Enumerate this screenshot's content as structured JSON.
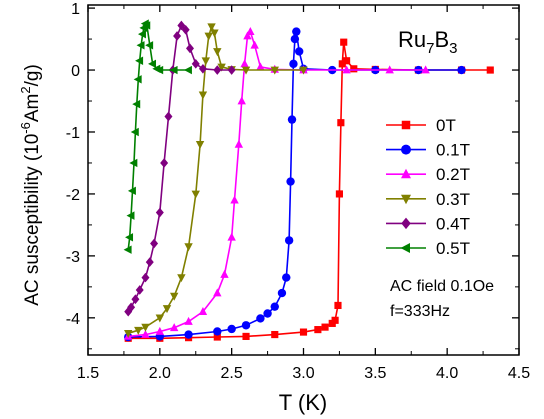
{
  "chart_data": {
    "type": "line",
    "title": "",
    "xlabel": "T (K)",
    "ylabel": "AC susceptibility (10",
    "ylabel_sup": "-6",
    "ylabel_unit": "Am",
    "ylabel_unit_sup": "2",
    "ylabel_tail": "/g)",
    "xlim": [
      1.5,
      4.5
    ],
    "ylim": [
      -4.6,
      1.05
    ],
    "xticks": [
      1.5,
      2.0,
      2.5,
      3.0,
      3.5,
      4.0,
      4.5
    ],
    "xtick_labels": [
      "1.5",
      "2.0",
      "2.5",
      "3.0",
      "3.5",
      "4.0",
      "4.5"
    ],
    "yticks": [
      1,
      0,
      -1,
      -2,
      -3,
      -4
    ],
    "ytick_labels": [
      "1",
      "0",
      "-1",
      "-2",
      "-3",
      "-4"
    ],
    "grid": false,
    "legend_position": "right",
    "sample_label": {
      "main": "Ru",
      "sub1": "7",
      "mid": "B",
      "sub2": "3"
    },
    "annotation_lines": [
      "AC field 0.1Oe",
      "f=333Hz"
    ],
    "series": [
      {
        "name": "0T",
        "color": "#ff0000",
        "marker": "square",
        "x": [
          1.78,
          2.0,
          2.2,
          2.4,
          2.6,
          2.8,
          3.0,
          3.1,
          3.15,
          3.2,
          3.22,
          3.24,
          3.25,
          3.26,
          3.27,
          3.28,
          3.3,
          3.35,
          3.5,
          3.8,
          4.1,
          4.3
        ],
        "y": [
          -4.33,
          -4.33,
          -4.32,
          -4.31,
          -4.3,
          -4.27,
          -4.23,
          -4.19,
          -4.15,
          -4.09,
          -4.04,
          -3.8,
          -2.0,
          -0.85,
          0.1,
          0.45,
          0.15,
          0.02,
          0.01,
          0.0,
          0.0,
          0.0
        ]
      },
      {
        "name": "0.1T",
        "color": "#0000ff",
        "marker": "circle",
        "x": [
          1.78,
          2.0,
          2.2,
          2.4,
          2.5,
          2.6,
          2.7,
          2.75,
          2.8,
          2.85,
          2.88,
          2.9,
          2.91,
          2.92,
          2.93,
          2.94,
          2.95,
          2.97,
          3.0,
          3.2,
          3.5,
          3.8,
          4.1
        ],
        "y": [
          -4.31,
          -4.3,
          -4.27,
          -4.22,
          -4.18,
          -4.12,
          -4.01,
          -3.93,
          -3.82,
          -3.6,
          -3.35,
          -2.75,
          -1.8,
          -0.8,
          0.1,
          0.5,
          0.62,
          0.3,
          0.02,
          0.0,
          0.0,
          0.0,
          0.0
        ]
      },
      {
        "name": "0.2T",
        "color": "#ff00ff",
        "marker": "triangle-up",
        "x": [
          1.78,
          1.9,
          2.0,
          2.1,
          2.2,
          2.3,
          2.4,
          2.45,
          2.5,
          2.52,
          2.55,
          2.57,
          2.59,
          2.61,
          2.63,
          2.66,
          2.7,
          2.8,
          3.0,
          3.3,
          3.6,
          3.85
        ],
        "y": [
          -4.3,
          -4.27,
          -4.22,
          -4.16,
          -4.06,
          -3.9,
          -3.6,
          -3.3,
          -2.7,
          -2.1,
          -1.2,
          -0.5,
          0.1,
          0.55,
          0.62,
          0.4,
          0.05,
          0.01,
          0.0,
          0.0,
          0.0,
          0.0
        ]
      },
      {
        "name": "0.3T",
        "color": "#808000",
        "marker": "triangle-down",
        "x": [
          1.78,
          1.85,
          1.9,
          2.0,
          2.05,
          2.1,
          2.15,
          2.2,
          2.25,
          2.28,
          2.3,
          2.32,
          2.34,
          2.36,
          2.38,
          2.4,
          2.43,
          2.5,
          2.6,
          2.8,
          3.0
        ],
        "y": [
          -4.25,
          -4.2,
          -4.15,
          -4.0,
          -3.85,
          -3.65,
          -3.35,
          -2.85,
          -2.0,
          -1.2,
          -0.4,
          0.15,
          0.55,
          0.7,
          0.6,
          0.3,
          0.05,
          0.01,
          0.0,
          0.0,
          0.0
        ]
      },
      {
        "name": "0.4T",
        "color": "#800080",
        "marker": "diamond",
        "x": [
          1.78,
          1.8,
          1.83,
          1.86,
          1.9,
          1.93,
          1.96,
          2.0,
          2.03,
          2.06,
          2.09,
          2.12,
          2.15,
          2.18,
          2.21,
          2.25,
          2.3,
          2.4,
          2.5
        ],
        "y": [
          -3.9,
          -3.83,
          -3.7,
          -3.55,
          -3.35,
          -3.1,
          -2.8,
          -2.3,
          -1.5,
          -0.75,
          0.0,
          0.55,
          0.72,
          0.65,
          0.35,
          0.1,
          0.02,
          0.0,
          0.0
        ]
      },
      {
        "name": "0.5T",
        "color": "#008000",
        "marker": "triangle-left",
        "x": [
          1.78,
          1.79,
          1.8,
          1.81,
          1.82,
          1.83,
          1.84,
          1.85,
          1.86,
          1.87,
          1.88,
          1.89,
          1.9,
          1.91,
          1.93,
          1.95,
          1.98,
          2.0,
          2.1,
          2.2
        ],
        "y": [
          -2.9,
          -2.7,
          -2.35,
          -1.95,
          -1.5,
          -1.0,
          -0.55,
          -0.15,
          0.15,
          0.4,
          0.58,
          0.68,
          0.75,
          0.72,
          0.4,
          0.1,
          0.02,
          0.0,
          0.0,
          0.0
        ]
      }
    ]
  }
}
